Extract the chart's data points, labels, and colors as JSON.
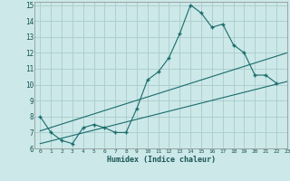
{
  "xlabel": "Humidex (Indice chaleur)",
  "bg_color": "#cce8e8",
  "grid_color": "#aacccc",
  "line_color": "#1a6b6b",
  "xlim": [
    -0.5,
    23
  ],
  "ylim": [
    6,
    15.2
  ],
  "xticks": [
    0,
    1,
    2,
    3,
    4,
    5,
    6,
    7,
    8,
    9,
    10,
    11,
    12,
    13,
    14,
    15,
    16,
    17,
    18,
    19,
    20,
    21,
    22,
    23
  ],
  "yticks": [
    6,
    7,
    8,
    9,
    10,
    11,
    12,
    13,
    14,
    15
  ],
  "series1_x": [
    0,
    1,
    2,
    3,
    4,
    5,
    6,
    7,
    8,
    9,
    10,
    11,
    12,
    13,
    14,
    15,
    16,
    17,
    18,
    19,
    20,
    21,
    22
  ],
  "series1_y": [
    8.0,
    7.0,
    6.5,
    6.3,
    7.3,
    7.5,
    7.3,
    7.0,
    7.0,
    8.5,
    10.3,
    10.8,
    11.7,
    13.2,
    15.0,
    14.5,
    13.6,
    13.8,
    12.5,
    12.0,
    10.6,
    10.6,
    10.1
  ],
  "series2_x": [
    0,
    23
  ],
  "series2_y": [
    7.1,
    12.0
  ],
  "series3_x": [
    0,
    23
  ],
  "series3_y": [
    6.3,
    10.2
  ]
}
